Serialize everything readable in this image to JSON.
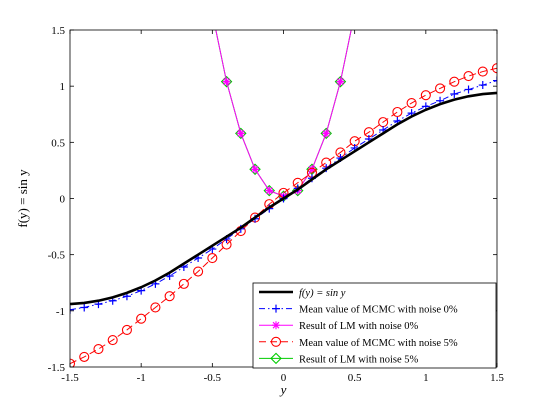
{
  "chart_data": {
    "type": "line",
    "xlabel": "y",
    "ylabel": "f(y) = sin y",
    "xlim": [
      -1.5,
      1.5
    ],
    "ylim": [
      -1.5,
      1.5
    ],
    "xticks": [
      -1.5,
      -1,
      -0.5,
      0,
      0.5,
      1,
      1.5
    ],
    "yticks": [
      -1.5,
      -1,
      -0.5,
      0,
      0.5,
      1,
      1.5
    ],
    "xtick_labels": [
      "-1.5",
      "-1",
      "-0.5",
      "0",
      "0.5",
      "1",
      "1.5"
    ],
    "ytick_labels": [
      "-1.5",
      "-1",
      "-0.5",
      "0",
      "0.5",
      "1",
      "1.5"
    ],
    "grid": false,
    "legend_position": "bottom-right",
    "series": [
      {
        "name": "f(y) = sin y",
        "color": "#000000",
        "style": "solid-thick",
        "marker": "none",
        "x": [
          -1.5,
          -1.4,
          -1.3,
          -1.2,
          -1.1,
          -1.0,
          -0.9,
          -0.8,
          -0.7,
          -0.6,
          -0.5,
          -0.4,
          -0.3,
          -0.2,
          -0.1,
          0.0,
          0.1,
          0.2,
          0.3,
          0.4,
          0.5,
          0.6,
          0.7,
          0.8,
          0.9,
          1.0,
          1.1,
          1.2,
          1.3,
          1.4,
          1.5
        ],
        "y": [
          -0.94,
          -0.93,
          -0.91,
          -0.88,
          -0.84,
          -0.79,
          -0.73,
          -0.66,
          -0.58,
          -0.5,
          -0.42,
          -0.34,
          -0.26,
          -0.17,
          -0.08,
          0.0,
          0.08,
          0.17,
          0.26,
          0.34,
          0.42,
          0.5,
          0.58,
          0.66,
          0.73,
          0.79,
          0.84,
          0.88,
          0.91,
          0.93,
          0.94
        ]
      },
      {
        "name": "Mean value of MCMC with noise 0%",
        "color": "#0000ff",
        "style": "dashdot",
        "marker": "plus",
        "x": [
          -1.5,
          -1.4,
          -1.3,
          -1.2,
          -1.1,
          -1.0,
          -0.9,
          -0.8,
          -0.7,
          -0.6,
          -0.5,
          -0.4,
          -0.3,
          -0.2,
          -0.1,
          0.0,
          0.1,
          0.2,
          0.3,
          0.4,
          0.5,
          0.6,
          0.7,
          0.8,
          0.9,
          1.0,
          1.1,
          1.2,
          1.3,
          1.4,
          1.5
        ],
        "y": [
          -0.99,
          -0.97,
          -0.94,
          -0.91,
          -0.87,
          -0.82,
          -0.76,
          -0.69,
          -0.61,
          -0.53,
          -0.45,
          -0.36,
          -0.27,
          -0.18,
          -0.09,
          0.0,
          0.09,
          0.18,
          0.27,
          0.36,
          0.45,
          0.53,
          0.61,
          0.69,
          0.76,
          0.82,
          0.87,
          0.93,
          0.97,
          1.01,
          1.05
        ]
      },
      {
        "name": "Result of LM with noise 0%",
        "color": "#ff00ff",
        "style": "solid",
        "marker": "star",
        "x": [
          -0.5,
          -0.4,
          -0.3,
          -0.2,
          -0.1,
          0.0,
          0.1,
          0.2,
          0.3,
          0.4,
          0.5
        ],
        "y": [
          1.65,
          1.04,
          0.58,
          0.26,
          0.07,
          0.02,
          0.07,
          0.26,
          0.58,
          1.04,
          1.65
        ]
      },
      {
        "name": "Mean value of MCMC with noise 5%",
        "color": "#ff0000",
        "style": "dashed",
        "marker": "circle",
        "x": [
          -1.5,
          -1.4,
          -1.3,
          -1.2,
          -1.1,
          -1.0,
          -0.9,
          -0.8,
          -0.7,
          -0.6,
          -0.5,
          -0.4,
          -0.3,
          -0.2,
          -0.1,
          0.0,
          0.1,
          0.2,
          0.3,
          0.4,
          0.5,
          0.6,
          0.7,
          0.8,
          0.9,
          1.0,
          1.1,
          1.2,
          1.3,
          1.4,
          1.5
        ],
        "y": [
          -1.47,
          -1.41,
          -1.34,
          -1.26,
          -1.17,
          -1.07,
          -0.97,
          -0.87,
          -0.76,
          -0.65,
          -0.53,
          -0.41,
          -0.29,
          -0.17,
          -0.05,
          0.05,
          0.14,
          0.23,
          0.32,
          0.41,
          0.51,
          0.59,
          0.68,
          0.77,
          0.85,
          0.92,
          0.98,
          1.04,
          1.09,
          1.13,
          1.16
        ]
      },
      {
        "name": "Result of LM with noise 5%",
        "color": "#00cc00",
        "style": "solid",
        "marker": "diamond",
        "x": [
          -0.5,
          -0.4,
          -0.3,
          -0.2,
          -0.1,
          0.0,
          0.1,
          0.2,
          0.3,
          0.4,
          0.5
        ],
        "y": [
          1.65,
          1.04,
          0.58,
          0.26,
          0.07,
          0.02,
          0.07,
          0.26,
          0.58,
          1.04,
          1.65
        ]
      }
    ]
  }
}
